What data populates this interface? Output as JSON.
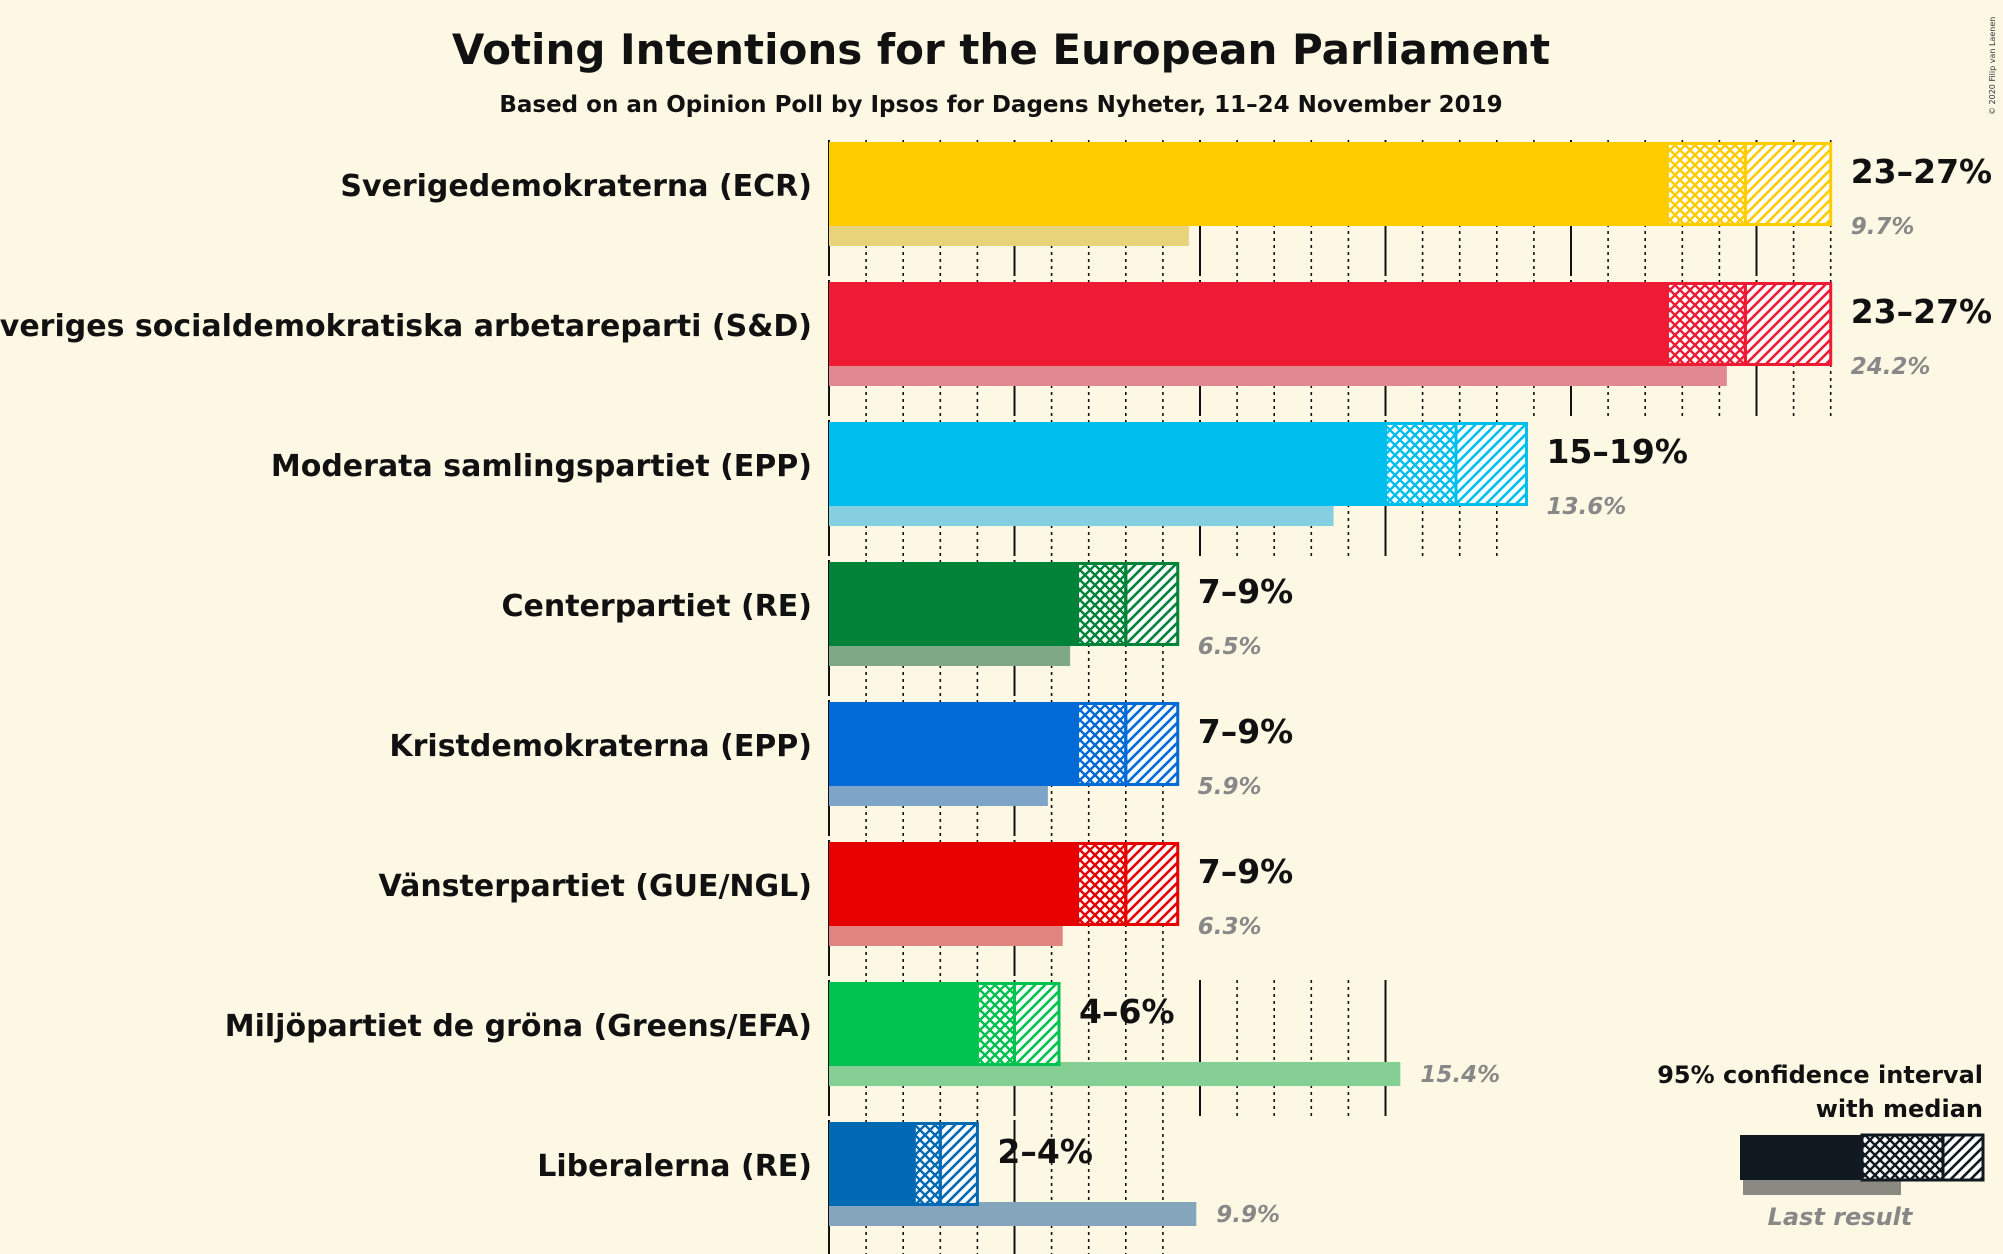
{
  "chart_data": {
    "type": "bar",
    "title": "Voting Intentions for the European Parliament",
    "subtitle": "Based on an Opinion Poll by Ipsos for Dagens Nyheter, 11–24 November 2019",
    "copyright": "© 2020 Filip van Laenen",
    "xlim": [
      0,
      27
    ],
    "parties": [
      {
        "name": "Sverigedemokraterna (ECR)",
        "color": "#ffcc00",
        "last_color": "#e8d27a",
        "low": 23,
        "ci_low": 22.6,
        "median": 24.7,
        "ci_high": 27,
        "range_label": "23–27%",
        "last": 9.7,
        "last_label": "9.7%"
      },
      {
        "name": "Sveriges socialdemokratiska arbetareparti (S&D)",
        "color": "#ed1b34",
        "last_color": "#e28890",
        "low": 23,
        "ci_low": 22.6,
        "median": 24.7,
        "ci_high": 27,
        "range_label": "23–27%",
        "last": 24.2,
        "last_label": "24.2%"
      },
      {
        "name": "Moderata samlingspartiet (EPP)",
        "color": "#00bfef",
        "last_color": "#85cfe0",
        "low": 15,
        "ci_low": 15.0,
        "median": 16.9,
        "ci_high": 18.8,
        "range_label": "15–19%",
        "last": 13.6,
        "last_label": "13.6%"
      },
      {
        "name": "Centerpartiet (RE)",
        "color": "#008339",
        "last_color": "#7fa986",
        "low": 7,
        "ci_low": 6.7,
        "median": 8.0,
        "ci_high": 9.4,
        "range_label": "7–9%",
        "last": 6.5,
        "last_label": "6.5%"
      },
      {
        "name": "Kristdemokraterna (EPP)",
        "color": "#006ad7",
        "last_color": "#7ea4c8",
        "low": 7,
        "ci_low": 6.7,
        "median": 8.0,
        "ci_high": 9.4,
        "range_label": "7–9%",
        "last": 5.9,
        "last_label": "5.9%"
      },
      {
        "name": "Vänsterpartiet (GUE/NGL)",
        "color": "#e60000",
        "last_color": "#e08480",
        "low": 7,
        "ci_low": 6.7,
        "median": 8.0,
        "ci_high": 9.4,
        "range_label": "7–9%",
        "last": 6.3,
        "last_label": "6.3%"
      },
      {
        "name": "Miljöpartiet de gröna (Greens/EFA)",
        "color": "#00c24f",
        "last_color": "#86cf94",
        "low": 4,
        "ci_low": 4.0,
        "median": 5.0,
        "ci_high": 6.2,
        "range_label": "4–6%",
        "last": 15.4,
        "last_label": "15.4%"
      },
      {
        "name": "Liberalerna (RE)",
        "color": "#0069b4",
        "last_color": "#84a5bc",
        "low": 2,
        "ci_low": 2.3,
        "median": 3.0,
        "ci_high": 4.0,
        "range_label": "2–4%",
        "last": 9.9,
        "last_label": "9.9%"
      }
    ],
    "legend": {
      "line1": "95% confidence interval",
      "line2": "with median",
      "last_result": "Last result"
    }
  }
}
